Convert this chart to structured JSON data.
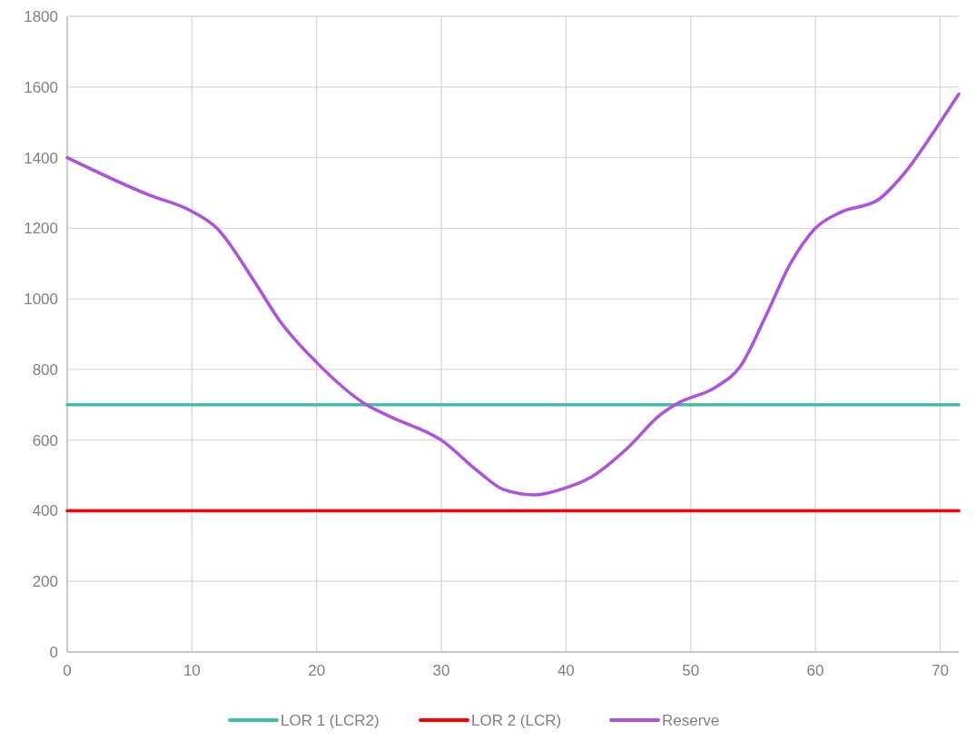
{
  "chart_data": {
    "type": "line",
    "xlim": [
      0,
      71.5
    ],
    "xticks": [
      0,
      10,
      20,
      30,
      40,
      50,
      60,
      70
    ],
    "ylim": [
      0,
      1800
    ],
    "yticks": [
      0,
      200,
      400,
      600,
      800,
      1000,
      1200,
      1400,
      1600,
      1800
    ],
    "grid": true,
    "legend": "bottom",
    "series": [
      {
        "name": "LOR 1 (LCR2)",
        "color": "#3fbfa5",
        "x": [
          0,
          71.5
        ],
        "values": [
          700,
          700
        ]
      },
      {
        "name": "LOR 2 (LCR)",
        "color": "#ff0000",
        "x": [
          0,
          71.5
        ],
        "values": [
          400,
          400
        ]
      },
      {
        "name": "Reserve",
        "color": "#b050e0",
        "x": [
          0,
          6.5,
          10,
          12,
          15,
          17,
          20,
          24,
          26,
          30,
          33,
          35,
          37.5,
          40,
          42,
          45,
          47.5,
          49,
          52,
          54,
          56,
          58,
          60,
          62,
          65,
          67,
          70,
          71.5
        ],
        "values": [
          1400,
          1295,
          1248,
          1200,
          1050,
          940,
          820,
          700,
          665,
          600,
          510,
          460,
          445,
          465,
          495,
          580,
          670,
          705,
          750,
          810,
          950,
          1100,
          1200,
          1245,
          1280,
          1350,
          1500,
          1580
        ]
      }
    ]
  }
}
